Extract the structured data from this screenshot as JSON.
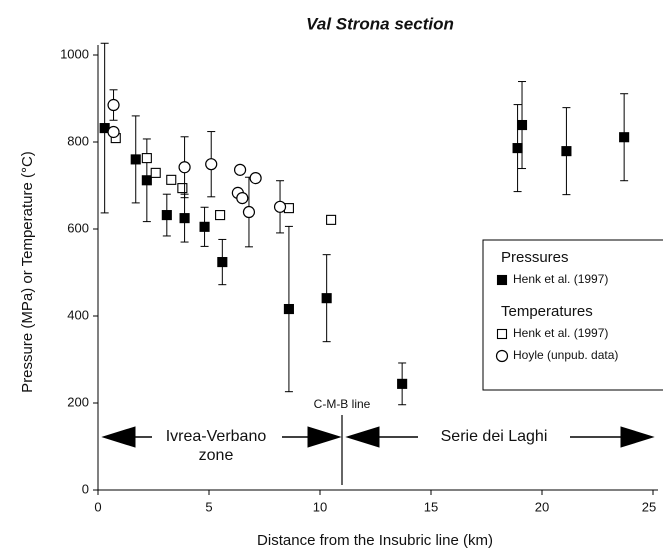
{
  "chart_data": {
    "type": "scatter",
    "title": "Val Strona section",
    "x_label": "Distance from the Insubric line (km)",
    "y_label": "Pressure (MPa) or Temperature (°C)",
    "xlim": [
      0,
      25
    ],
    "ylim": [
      0,
      1000
    ],
    "xticks": [
      0,
      5,
      10,
      15,
      20,
      25
    ],
    "yticks": [
      0,
      200,
      400,
      600,
      800,
      1000
    ],
    "grid": false,
    "legend_position": "center right",
    "legend_titles": [
      "Pressures",
      "Temperatures"
    ],
    "annotations": [
      "C-M-B line",
      "Ivrea-Verbano",
      "zone",
      "Serie dei Laghi"
    ],
    "series": [
      {
        "name": "Henk et al. (1997)",
        "marker": "filled-square",
        "color": "#000000",
        "x": [
          0.3,
          1.7,
          2.2,
          3.1,
          3.9,
          4.8,
          5.6,
          8.6,
          10.3,
          13.7,
          18.9,
          19.1,
          21.1,
          23.7
        ],
        "values": [
          832,
          760,
          712,
          632,
          625,
          605,
          524,
          416,
          441,
          244,
          786,
          839,
          779,
          811
        ],
        "errors": [
          195,
          100,
          95,
          48,
          55,
          45,
          52,
          190,
          100,
          48,
          100,
          100,
          100,
          100
        ]
      },
      {
        "name": "Henk et al. (1997)",
        "marker": "open-square",
        "color": "#000000",
        "x": [
          0.8,
          2.2,
          2.6,
          3.3,
          3.8,
          5.5,
          8.6,
          10.5
        ],
        "values": [
          809,
          763,
          729,
          713,
          694,
          632,
          648,
          621
        ]
      },
      {
        "name": "Hoyle (unpub. data)",
        "marker": "open-circle",
        "color": "#000000",
        "x": [
          0.7,
          0.7,
          3.9,
          5.1,
          6.4,
          6.3,
          6.5,
          6.8,
          7.1,
          8.2
        ],
        "values": [
          885,
          823,
          742,
          749,
          736,
          683,
          671,
          639,
          717,
          651
        ],
        "errors": [
          35,
          null,
          70,
          75,
          null,
          null,
          null,
          80,
          null,
          60
        ]
      }
    ]
  }
}
